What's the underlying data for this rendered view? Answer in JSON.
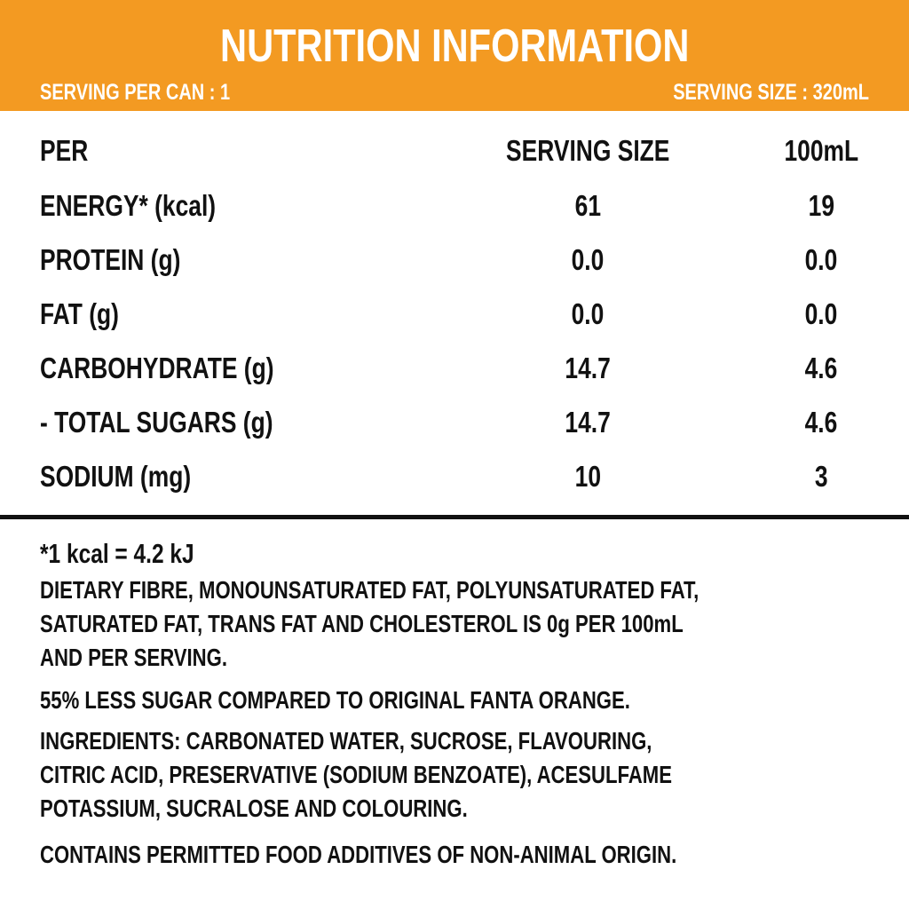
{
  "header": {
    "title": "NUTRITION INFORMATION",
    "serving_per_can": "SERVING PER CAN : 1",
    "serving_size": "SERVING SIZE : 320mL",
    "color": "#F39A22"
  },
  "table": {
    "columns": [
      "PER",
      "SERVING SIZE",
      "100mL"
    ],
    "rows": [
      {
        "label": "ENERGY* (kcal)",
        "serving": "61",
        "per100": "19"
      },
      {
        "label": "PROTEIN (g)",
        "serving": "0.0",
        "per100": "0.0"
      },
      {
        "label": "FAT (g)",
        "serving": "0.0",
        "per100": "0.0"
      },
      {
        "label": "CARBOHYDRATE (g)",
        "serving": "14.7",
        "per100": "4.6"
      },
      {
        "label": "- TOTAL SUGARS (g)",
        "serving": "14.7",
        "per100": "4.6"
      },
      {
        "label": "SODIUM (mg)",
        "serving": "10",
        "per100": "3"
      }
    ]
  },
  "footnotes": {
    "kcal_note": "*1 kcal = 4.2 kJ",
    "lines": [
      "DIETARY FIBRE, MONOUNSATURATED FAT, POLYUNSATURATED FAT,",
      "SATURATED FAT, TRANS FAT AND CHOLESTEROL IS 0g PER 100mL",
      "AND PER SERVING.",
      "55% LESS SUGAR COMPARED TO ORIGINAL FANTA ORANGE.",
      "INGREDIENTS: CARBONATED WATER, SUCROSE, FLAVOURING,",
      "CITRIC ACID, PRESERVATIVE (SODIUM BENZOATE), ACESULFAME",
      "POTASSIUM, SUCRALOSE AND COLOURING.",
      "CONTAINS PERMITTED FOOD ADDITIVES OF NON-ANIMAL ORIGIN."
    ]
  }
}
